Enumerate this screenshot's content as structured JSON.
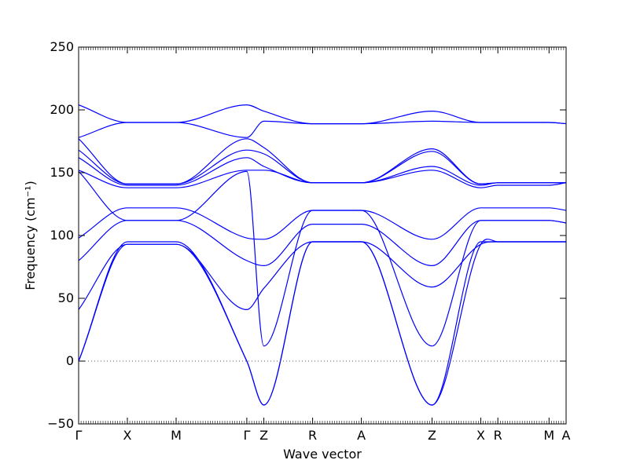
{
  "chart_data": {
    "type": "line",
    "title": "",
    "xlabel": "Wave vector",
    "ylabel": "Frequency (cm⁻¹)",
    "ylim": [
      -50,
      250
    ],
    "yticks": [
      -50,
      0,
      50,
      100,
      150,
      200,
      250
    ],
    "ytick_labels": [
      "−50",
      "0",
      "50",
      "100",
      "150",
      "200",
      "250"
    ],
    "xlim": [
      0,
      10
    ],
    "xticks": [
      {
        "pos": 0.0,
        "label": "Γ"
      },
      {
        "pos": 1.0,
        "label": "X"
      },
      {
        "pos": 2.0,
        "label": "M"
      },
      {
        "pos": 3.45,
        "label": "Γ"
      },
      {
        "pos": 3.8,
        "label": "Z"
      },
      {
        "pos": 4.8,
        "label": "R"
      },
      {
        "pos": 5.8,
        "label": "A"
      },
      {
        "pos": 7.25,
        "label": "Z"
      },
      {
        "pos": 8.25,
        "label": "X"
      },
      {
        "pos": 8.6,
        "label": "R"
      },
      {
        "pos": 9.65,
        "label": "M"
      },
      {
        "pos": 10.0,
        "label": "A"
      }
    ],
    "zero_line": 0,
    "grid": false,
    "line_color": "#0000ff",
    "series": [
      {
        "x": [
          0,
          1,
          2,
          3.45,
          3.8,
          4.8,
          5.8,
          7.25,
          8.25,
          8.6,
          9.65,
          10
        ],
        "y": [
          0,
          93,
          93,
          0,
          -35,
          95,
          95,
          -35,
          93,
          95,
          95,
          95
        ]
      },
      {
        "x": [
          0,
          1,
          2,
          3.45,
          3.8,
          4.8,
          5.8,
          7.25,
          8.25,
          8.6,
          9.65,
          10
        ],
        "y": [
          0,
          95,
          95,
          0,
          -35,
          95,
          95,
          -35,
          95,
          95,
          95,
          95
        ]
      },
      {
        "x": [
          0,
          1,
          2,
          3.45,
          3.8,
          4.8,
          5.8,
          7.25,
          8.25,
          8.6,
          9.65,
          10
        ],
        "y": [
          41,
          93,
          93,
          41,
          58,
          95,
          95,
          59,
          93,
          95,
          95,
          95
        ]
      },
      {
        "x": [
          0,
          1,
          2,
          3.45,
          3.8,
          4.8,
          5.8,
          7.25,
          8.25,
          8.6,
          9.65,
          10
        ],
        "y": [
          80,
          112,
          112,
          80,
          76,
          109,
          109,
          76,
          112,
          112,
          112,
          110
        ]
      },
      {
        "x": [
          0,
          1,
          2,
          3.45,
          3.8,
          4.8,
          5.8,
          7.25,
          8.25,
          8.6,
          9.65,
          10
        ],
        "y": [
          98,
          122,
          122,
          98,
          97,
          120,
          120,
          97,
          122,
          122,
          122,
          120
        ]
      },
      {
        "x": [
          0,
          1,
          2,
          3.45,
          3.8,
          4.8,
          5.8,
          7.25,
          8.25,
          8.6,
          9.65,
          10
        ],
        "y": [
          151,
          112,
          112,
          151,
          12,
          120,
          120,
          12,
          112,
          112,
          112,
          110
        ]
      },
      {
        "x": [
          0,
          1,
          2,
          3.45,
          3.8,
          4.8,
          5.8,
          7.25,
          8.25,
          8.6,
          9.65,
          10
        ],
        "y": [
          152,
          138,
          138,
          152,
          152,
          142,
          142,
          152,
          138,
          140,
          140,
          142
        ]
      },
      {
        "x": [
          0,
          1,
          2,
          3.45,
          3.8,
          4.8,
          5.8,
          7.25,
          8.25,
          8.6,
          9.65,
          10
        ],
        "y": [
          162,
          140,
          140,
          162,
          155,
          142,
          142,
          155,
          140,
          142,
          142,
          142
        ]
      },
      {
        "x": [
          0,
          1,
          2,
          3.45,
          3.8,
          4.8,
          5.8,
          7.25,
          8.25,
          8.6,
          9.65,
          10
        ],
        "y": [
          168,
          141,
          141,
          168,
          165,
          142,
          142,
          167,
          141,
          142,
          142,
          142
        ]
      },
      {
        "x": [
          0,
          1,
          2,
          3.45,
          3.8,
          4.8,
          5.8,
          7.25,
          8.25,
          8.6,
          9.65,
          10
        ],
        "y": [
          177,
          141,
          141,
          177,
          170,
          142,
          142,
          169,
          141,
          142,
          142,
          142
        ]
      },
      {
        "x": [
          0,
          1,
          2,
          3.45,
          3.8,
          4.8,
          5.8,
          7.25,
          8.25,
          8.6,
          9.65,
          10
        ],
        "y": [
          178,
          190,
          190,
          178,
          191,
          189,
          189,
          191,
          190,
          190,
          190,
          189
        ]
      },
      {
        "x": [
          0,
          1,
          2,
          3.45,
          3.8,
          4.8,
          5.8,
          7.25,
          8.25,
          8.6,
          9.65,
          10
        ],
        "y": [
          204,
          190,
          190,
          204,
          199,
          189,
          189,
          199,
          190,
          190,
          190,
          189
        ]
      }
    ]
  }
}
